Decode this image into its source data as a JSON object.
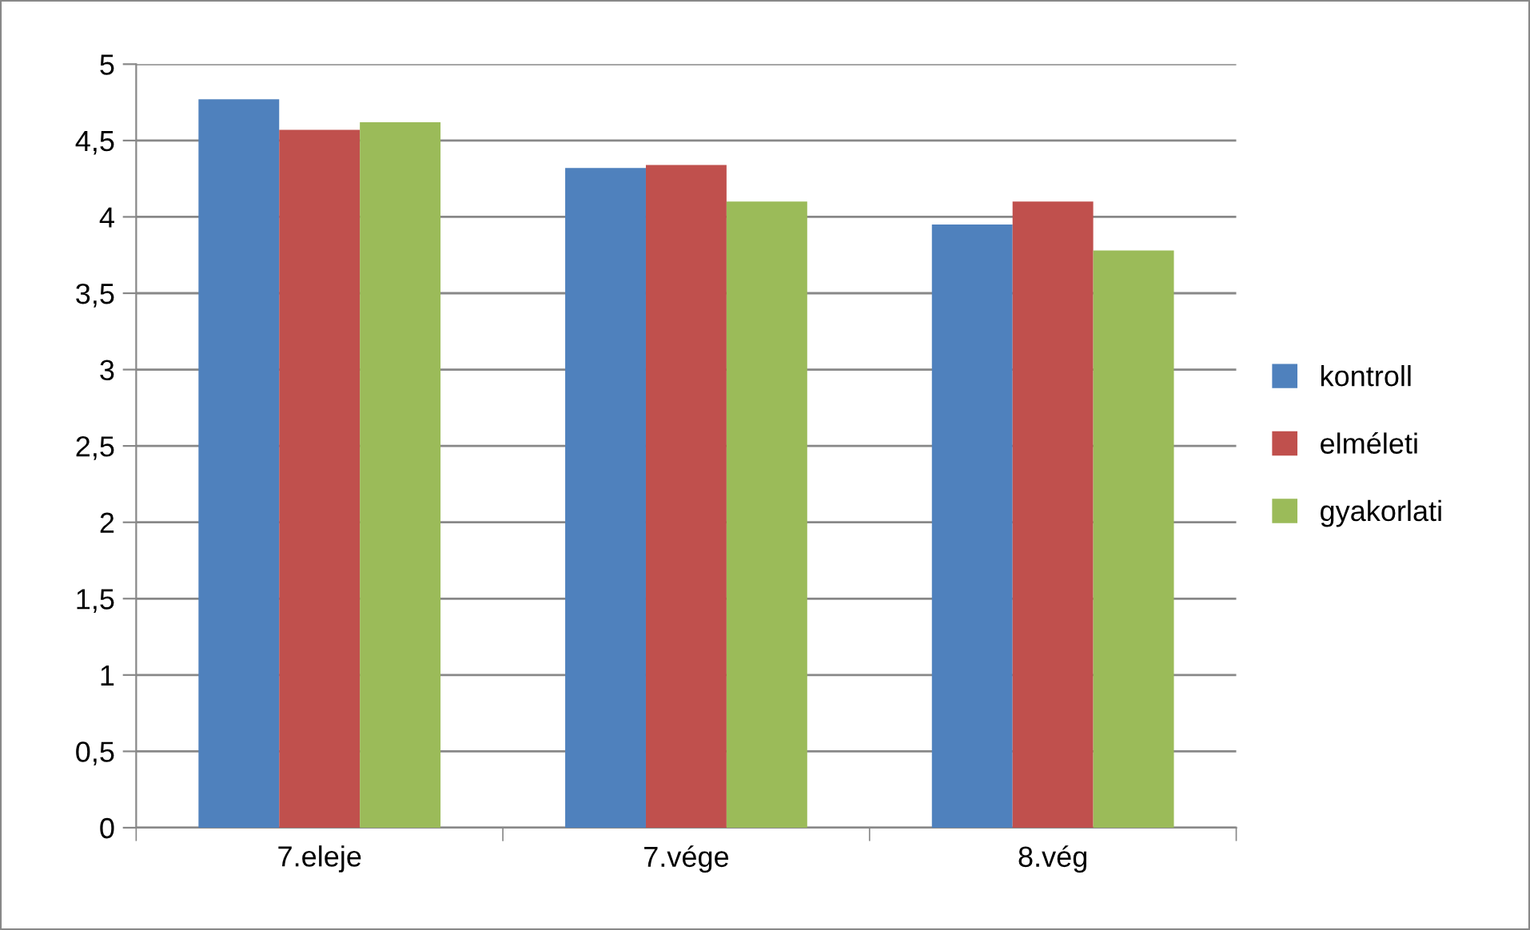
{
  "chart_data": {
    "type": "bar",
    "categories": [
      "7.eleje",
      "7.vége",
      "8.vég"
    ],
    "series": [
      {
        "name": "kontroll",
        "color": "#4f81bd",
        "values": [
          4.77,
          4.32,
          3.95
        ]
      },
      {
        "name": "elméleti",
        "color": "#c0504d",
        "values": [
          4.57,
          4.34,
          4.1
        ]
      },
      {
        "name": "gyakorlati",
        "color": "#9bbb59",
        "values": [
          4.62,
          4.1,
          3.78
        ]
      }
    ],
    "ylim": [
      0,
      5
    ],
    "yticks": [
      0,
      {
        "value": 0.5,
        "label": "0,5"
      },
      1,
      {
        "value": 1.5,
        "label": "1,5"
      },
      2,
      {
        "value": 2.5,
        "label": "2,5"
      },
      3,
      {
        "value": 3.5,
        "label": "3,5"
      },
      4,
      {
        "value": 4.5,
        "label": "4,5"
      },
      5
    ],
    "grid": "y",
    "legend": "right"
  }
}
